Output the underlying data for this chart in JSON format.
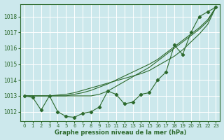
{
  "title": "Graphe pression niveau de la mer (hPa)",
  "bg_color": "#cce8ec",
  "grid_color": "#ffffff",
  "line_color": "#2d6a2d",
  "x_ticks": [
    0,
    1,
    2,
    3,
    4,
    5,
    6,
    7,
    8,
    9,
    10,
    11,
    12,
    13,
    14,
    15,
    16,
    17,
    18,
    19,
    20,
    21,
    22,
    23
  ],
  "y_ticks": [
    1012,
    1013,
    1014,
    1015,
    1016,
    1017,
    1018
  ],
  "ylim": [
    1011.4,
    1018.8
  ],
  "xlim": [
    -0.5,
    23.5
  ],
  "line1": [
    1013.0,
    1012.9,
    1012.1,
    1013.0,
    1012.0,
    1011.7,
    1011.65,
    1011.9,
    1012.0,
    1012.3,
    1013.3,
    1013.1,
    1012.5,
    1012.6,
    1013.1,
    1013.2,
    1014.0,
    1014.5,
    1016.2,
    1015.6,
    1017.0,
    1018.0,
    1018.3,
    1018.6
  ],
  "line2": [
    1013.0,
    1013.0,
    1013.0,
    1013.0,
    1013.05,
    1013.1,
    1013.2,
    1013.35,
    1013.5,
    1013.65,
    1013.8,
    1013.95,
    1014.1,
    1014.25,
    1014.4,
    1014.6,
    1014.9,
    1015.2,
    1015.5,
    1015.9,
    1016.4,
    1016.9,
    1017.5,
    1018.6
  ],
  "line3": [
    1013.0,
    1013.0,
    1013.0,
    1013.0,
    1013.0,
    1013.0,
    1013.1,
    1013.2,
    1013.35,
    1013.55,
    1013.75,
    1014.0,
    1014.25,
    1014.5,
    1014.75,
    1015.0,
    1015.3,
    1015.7,
    1016.1,
    1016.5,
    1016.9,
    1017.3,
    1017.8,
    1018.6
  ],
  "line4": [
    1013.0,
    1013.0,
    1013.0,
    1013.0,
    1013.0,
    1013.0,
    1013.0,
    1013.0,
    1013.0,
    1013.1,
    1013.3,
    1013.6,
    1013.9,
    1014.2,
    1014.5,
    1014.8,
    1015.2,
    1015.6,
    1016.0,
    1016.4,
    1016.8,
    1017.2,
    1017.7,
    1018.6
  ]
}
